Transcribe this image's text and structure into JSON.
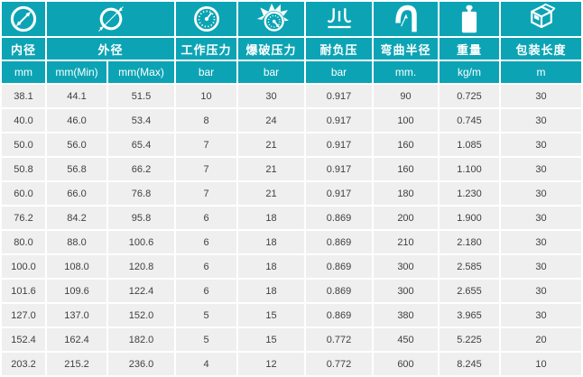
{
  "theme": {
    "teal": "#0ca4b5",
    "row_bg": "#efefef",
    "grid": "#ffffff",
    "header_text": "#ffffff",
    "data_text": "#404040"
  },
  "header": {
    "groups": [
      {
        "label": "内径",
        "icon": "inner-diameter-icon",
        "span": 1
      },
      {
        "label": "外径",
        "icon": "outer-diameter-icon",
        "span": 2
      },
      {
        "label": "工作压力",
        "icon": "pressure-gauge-icon",
        "span": 1
      },
      {
        "label": "爆破压力",
        "icon": "burst-gauge-icon",
        "span": 1
      },
      {
        "label": "耐负压",
        "icon": "vacuum-resistance-icon",
        "span": 1
      },
      {
        "label": "弯曲半径",
        "icon": "bend-radius-icon",
        "span": 1
      },
      {
        "label": "重量",
        "icon": "weight-icon",
        "span": 1
      },
      {
        "label": "包装长度",
        "icon": "package-box-icon",
        "span": 1
      }
    ],
    "units": [
      "mm",
      "mm(Min)",
      "mm(Max)",
      "bar",
      "bar",
      "bar",
      "mm.",
      "kg/m",
      "m"
    ]
  },
  "rows": [
    [
      "38.1",
      "44.1",
      "51.5",
      "10",
      "30",
      "0.917",
      "90",
      "0.725",
      "30"
    ],
    [
      "40.0",
      "46.0",
      "53.4",
      "8",
      "24",
      "0.917",
      "100",
      "0.745",
      "30"
    ],
    [
      "50.0",
      "56.0",
      "65.4",
      "7",
      "21",
      "0.917",
      "160",
      "1.085",
      "30"
    ],
    [
      "50.8",
      "56.8",
      "66.2",
      "7",
      "21",
      "0.917",
      "160",
      "1.100",
      "30"
    ],
    [
      "60.0",
      "66.0",
      "76.8",
      "7",
      "21",
      "0.917",
      "180",
      "1.230",
      "30"
    ],
    [
      "76.2",
      "84.2",
      "95.8",
      "6",
      "18",
      "0.869",
      "200",
      "1.900",
      "30"
    ],
    [
      "80.0",
      "88.0",
      "100.6",
      "6",
      "18",
      "0.869",
      "210",
      "2.180",
      "30"
    ],
    [
      "100.0",
      "108.0",
      "120.8",
      "6",
      "18",
      "0.869",
      "300",
      "2.585",
      "30"
    ],
    [
      "101.6",
      "109.6",
      "122.4",
      "6",
      "18",
      "0.869",
      "300",
      "2.655",
      "30"
    ],
    [
      "127.0",
      "137.0",
      "152.0",
      "5",
      "15",
      "0.869",
      "380",
      "3.965",
      "30"
    ],
    [
      "152.4",
      "162.4",
      "182.0",
      "5",
      "15",
      "0.772",
      "450",
      "5.225",
      "20"
    ],
    [
      "203.2",
      "215.2",
      "236.0",
      "4",
      "12",
      "0.772",
      "600",
      "8.245",
      "10"
    ]
  ]
}
